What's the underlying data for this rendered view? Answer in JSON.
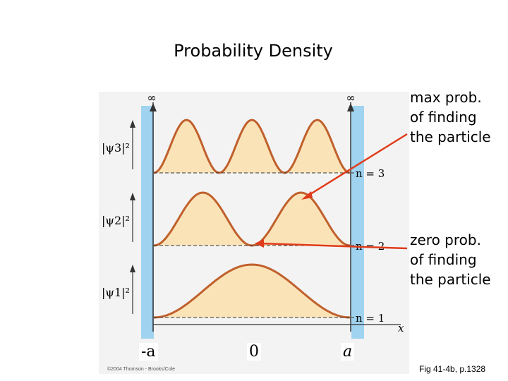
{
  "title": "Probability Density",
  "annotations": {
    "max": "max prob.\nof finding\nthe particle",
    "zero": "zero prob.\nof finding\nthe particle"
  },
  "axis_labels": {
    "neg": "-a",
    "zero": "0",
    "pos": "a",
    "x": "x"
  },
  "panels": [
    {
      "n": 3,
      "ylabel": "|ψ3|²",
      "level_label": "n = 3"
    },
    {
      "n": 2,
      "ylabel": "|ψ2|²",
      "level_label": "n = 2"
    },
    {
      "n": 1,
      "ylabel": "|ψ1|²",
      "level_label": "n = 1"
    }
  ],
  "infinity_symbol": "∞",
  "credit": "©2004 Thomson - Brooks/Cole",
  "figure_ref": "Fig 41-4b, p.1328",
  "colors": {
    "curve": "#c0602c",
    "fill": "#fbe3b8",
    "wall": "#9fd3ef",
    "arrow": "#e03b1a"
  }
}
